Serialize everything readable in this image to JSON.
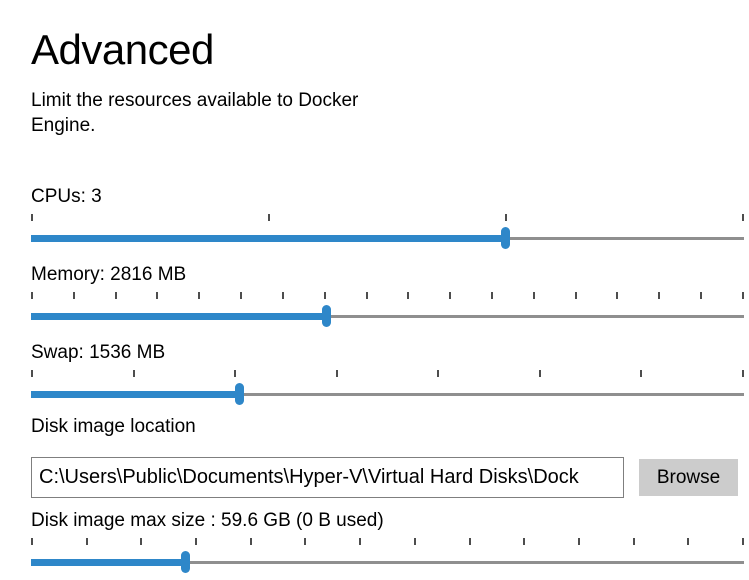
{
  "header": {
    "title": "Advanced",
    "description": "Limit the resources available to Docker Engine."
  },
  "sliders": [
    {
      "id": "cpus",
      "label": "CPUs: 3",
      "ticks": 4,
      "fill_percent": 66.5
    },
    {
      "id": "memory",
      "label": "Memory: 2816 MB",
      "ticks": 18,
      "fill_percent": 41.5
    },
    {
      "id": "swap",
      "label": "Swap: 1536 MB",
      "ticks": 8,
      "fill_percent": 29.2
    },
    {
      "id": "disk-max-size",
      "label": "Disk image max size : 59.6 GB (0 B  used)",
      "ticks": 14,
      "fill_percent": 21.6
    }
  ],
  "disk_location": {
    "label": "Disk image location",
    "value": "C:\\Users\\Public\\Documents\\Hyper-V\\Virtual Hard Disks\\Dock",
    "browse_label": "Browse"
  },
  "colors": {
    "accent": "#2E87C9",
    "track": "#8F8F8F",
    "tick": "#4D4D4D",
    "browse_bg": "#CCCCCC",
    "input_border": "#7F7F7F"
  }
}
